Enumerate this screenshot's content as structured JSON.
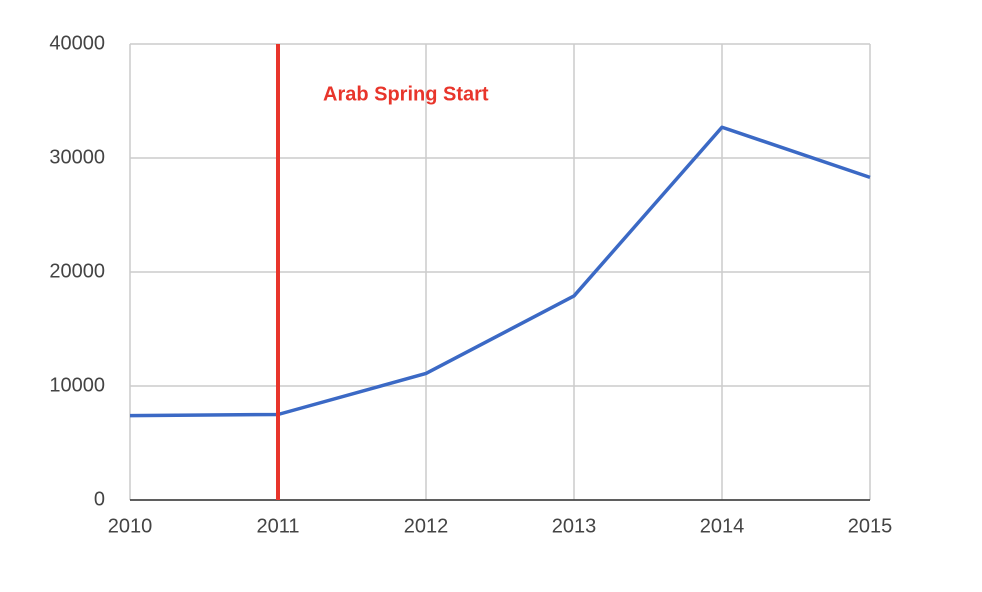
{
  "chart_data": {
    "type": "line",
    "x": [
      2010,
      2011,
      2012,
      2013,
      2014,
      2015
    ],
    "series": [
      {
        "color": "#3b69c5",
        "values": [
          7400,
          7500,
          11100,
          17900,
          32700,
          28300
        ]
      }
    ],
    "xlim": [
      2010,
      2015
    ],
    "xticks": [
      2010,
      2011,
      2012,
      2013,
      2014,
      2015
    ],
    "ylim": [
      0,
      40000
    ],
    "yticks": [
      0,
      10000,
      20000,
      30000,
      40000
    ],
    "grid": true,
    "annotations": [
      {
        "x": 2011,
        "label": "Arab Spring Start",
        "color": "#e8352b"
      }
    ]
  }
}
